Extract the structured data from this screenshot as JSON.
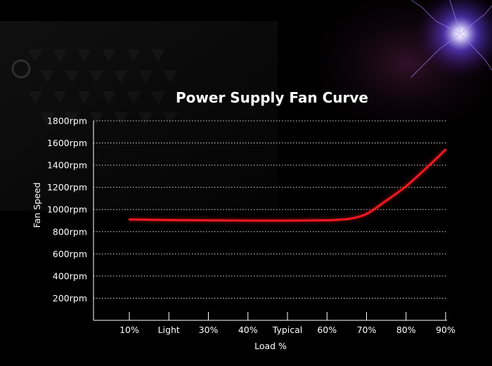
{
  "chart_data": {
    "type": "line",
    "title": "Power Supply Fan Curve",
    "xlabel": "Load %",
    "ylabel": "Fan Speed",
    "categories": [
      "10%",
      "Light",
      "30%",
      "40%",
      "Typical",
      "60%",
      "70%",
      "80%",
      "90%"
    ],
    "y_ticks": [
      "1800rpm",
      "1600rpm",
      "1400rpm",
      "1200rpm",
      "1000rpm",
      "800rpm",
      "600rpm",
      "400rpm",
      "200rpm"
    ],
    "y_tick_values": [
      1800,
      1600,
      1400,
      1200,
      1000,
      800,
      600,
      400,
      200
    ],
    "ylim": [
      0,
      1800
    ],
    "grid": true,
    "series": [
      {
        "color": "#ff1a22",
        "x": [
          0,
          1,
          2,
          3,
          4,
          5,
          5.3,
          5.6,
          6,
          6.5,
          7,
          7.5,
          8
        ],
        "y": [
          910,
          905,
          902,
          900,
          900,
          903,
          908,
          918,
          960,
          1080,
          1210,
          1370,
          1540
        ]
      }
    ]
  },
  "colors": {
    "background": "#000000",
    "glow": "#8a3cff",
    "curve": "#ff1a22",
    "grid": "#d8d8d8"
  }
}
